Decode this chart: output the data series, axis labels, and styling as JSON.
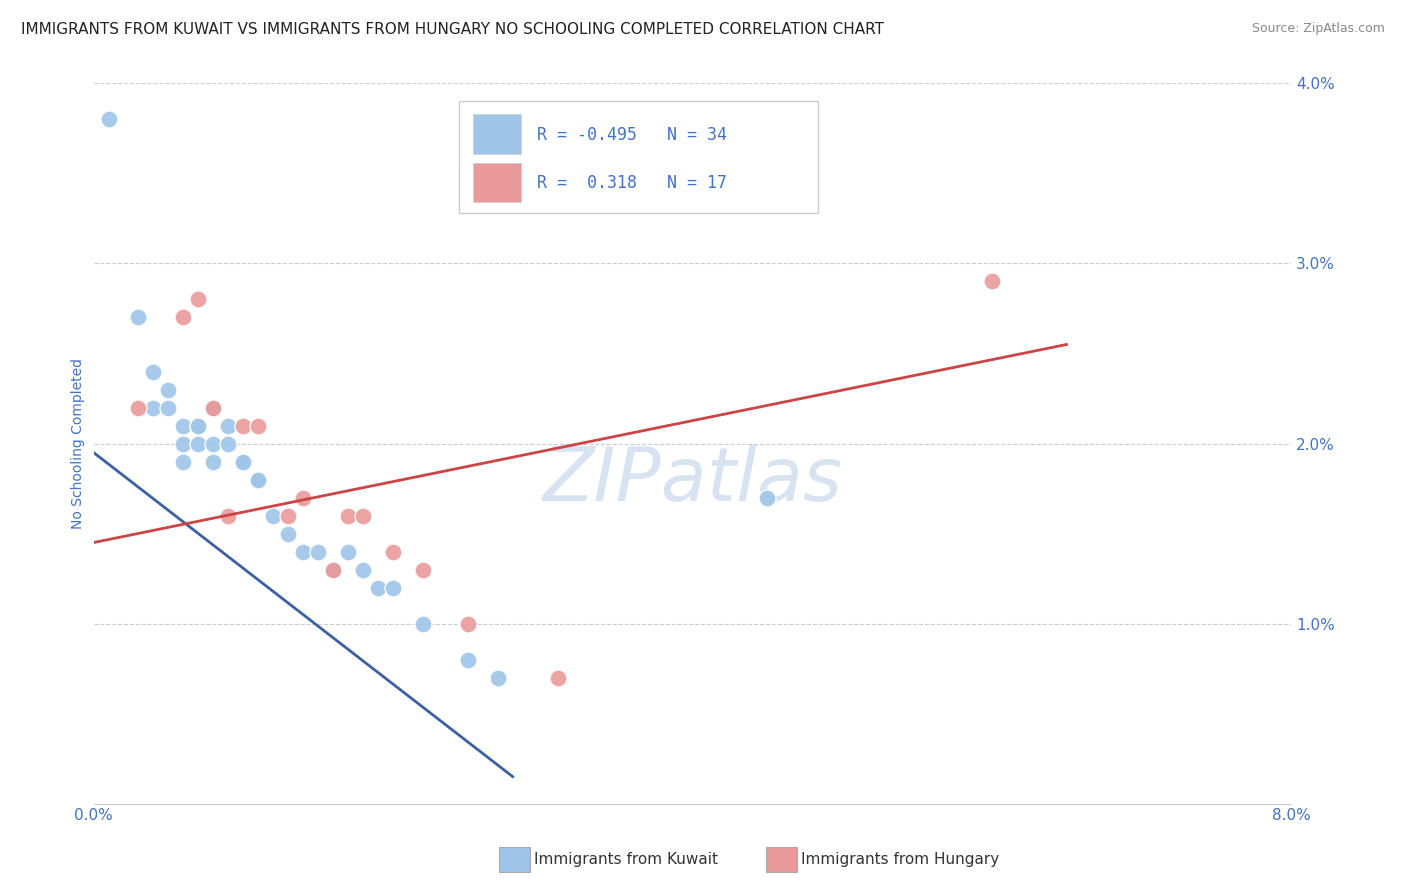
{
  "title": "IMMIGRANTS FROM KUWAIT VS IMMIGRANTS FROM HUNGARY NO SCHOOLING COMPLETED CORRELATION CHART",
  "source": "Source: ZipAtlas.com",
  "ylabel": "No Schooling Completed",
  "xlim": [
    0.0,
    0.08
  ],
  "ylim": [
    0.0,
    0.04
  ],
  "xticks": [
    0.0,
    0.01,
    0.02,
    0.03,
    0.04,
    0.05,
    0.06,
    0.07,
    0.08
  ],
  "yticks": [
    0.0,
    0.01,
    0.02,
    0.03,
    0.04
  ],
  "blue_color": "#9fc5e8",
  "pink_color": "#ea9999",
  "trend_blue": "#3c5fa3",
  "trend_pink": "#cc4444",
  "background_color": "#ffffff",
  "grid_color": "#cccccc",
  "axis_color": "#4472c4",
  "watermark": "ZIPatlas",
  "legend_r1": "R = -0.495",
  "legend_n1": "N = 34",
  "legend_r2": "R =  0.318",
  "legend_n2": "N = 17",
  "kuwait_x": [
    0.001,
    0.003,
    0.004,
    0.004,
    0.005,
    0.005,
    0.006,
    0.006,
    0.006,
    0.007,
    0.007,
    0.007,
    0.008,
    0.008,
    0.008,
    0.009,
    0.009,
    0.01,
    0.01,
    0.011,
    0.011,
    0.012,
    0.013,
    0.014,
    0.015,
    0.016,
    0.017,
    0.018,
    0.019,
    0.02,
    0.022,
    0.025,
    0.027,
    0.045
  ],
  "kuwait_y": [
    0.038,
    0.027,
    0.024,
    0.022,
    0.023,
    0.022,
    0.021,
    0.02,
    0.019,
    0.021,
    0.02,
    0.021,
    0.022,
    0.02,
    0.019,
    0.021,
    0.02,
    0.019,
    0.019,
    0.018,
    0.018,
    0.016,
    0.015,
    0.014,
    0.014,
    0.013,
    0.014,
    0.013,
    0.012,
    0.012,
    0.01,
    0.008,
    0.007,
    0.017
  ],
  "hungary_x": [
    0.003,
    0.006,
    0.007,
    0.008,
    0.009,
    0.01,
    0.011,
    0.013,
    0.014,
    0.016,
    0.017,
    0.018,
    0.02,
    0.022,
    0.025,
    0.031,
    0.06
  ],
  "hungary_y": [
    0.022,
    0.027,
    0.028,
    0.022,
    0.016,
    0.021,
    0.021,
    0.016,
    0.017,
    0.013,
    0.016,
    0.016,
    0.014,
    0.013,
    0.01,
    0.007,
    0.029
  ],
  "blue_trendline_x": [
    0.0,
    0.028
  ],
  "blue_trendline_y": [
    0.0195,
    0.0015
  ],
  "pink_trendline_x": [
    0.0,
    0.065
  ],
  "pink_trendline_y": [
    0.0145,
    0.0255
  ]
}
